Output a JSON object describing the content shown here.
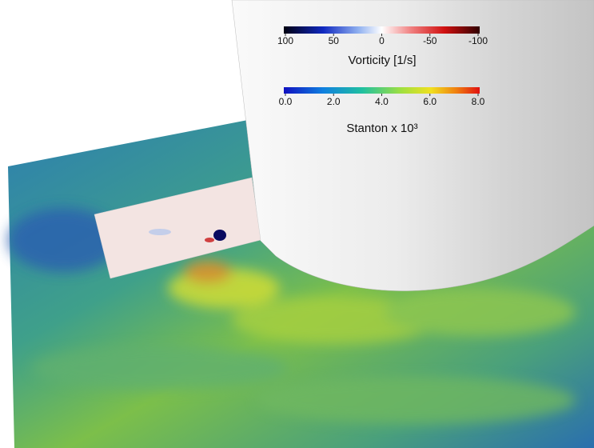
{
  "colorbars": [
    {
      "ticks": [
        "100",
        "50",
        "0",
        "-50",
        "-100"
      ],
      "label": "Vorticity [1/s]"
    },
    {
      "ticks": [
        "0.0",
        "2.0",
        "4.0",
        "6.0",
        "8.0"
      ],
      "label": "Stanton x 10³"
    }
  ]
}
